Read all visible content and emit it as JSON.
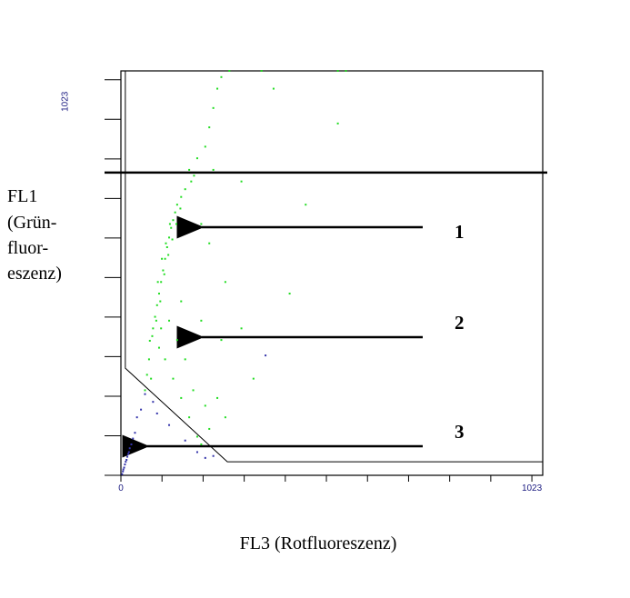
{
  "chart_data": {
    "type": "scatter",
    "x_label": "FL3 (Rotfluoreszenz)",
    "y_label": [
      "FL1",
      "(Grün-",
      "fluor-",
      "eszenz)"
    ],
    "annotations": [
      "1",
      "2",
      "3"
    ],
    "xlim": [
      0,
      1050
    ],
    "ylim": [
      0,
      1046
    ],
    "xticks": [
      0,
      1023
    ],
    "yticks": [
      1023
    ],
    "xtick_marks": [
      0,
      102.3,
      204.6,
      306.9,
      409.2,
      511.5,
      613.8,
      716.1,
      818.4,
      920.7,
      1023
    ],
    "ytick_marks": [
      0,
      102.3,
      204.6,
      306.9,
      409.2,
      511.5,
      613.8,
      716.1,
      818.4,
      920.7,
      1023
    ],
    "gate_line": 783,
    "gate": {
      "x": [
        11,
        11,
        265,
        1050
      ],
      "y": [
        1046,
        277,
        35,
        35
      ]
    },
    "series": [
      {
        "color": "#22dd22",
        "x": [
          72,
          80,
          85,
          90,
          95,
          100,
          105,
          110,
          115,
          120,
          125,
          130,
          135,
          140,
          150,
          160,
          175,
          182,
          78,
          88,
          98,
          108,
          118,
          128,
          138,
          148,
          92,
          102,
          112,
          122,
          70,
          65,
          60,
          75,
          95,
          110,
          130,
          150,
          170,
          190,
          200,
          140,
          160,
          180,
          210,
          220,
          240,
          260,
          200,
          250,
          300,
          330,
          260,
          220,
          200,
          230,
          210,
          220,
          230,
          240,
          250,
          270,
          350,
          540,
          560,
          380,
          540,
          460,
          420,
          190,
          170,
          300,
          150,
          120,
          100
        ],
        "values": [
          348,
          380,
          410,
          440,
          470,
          500,
          530,
          560,
          590,
          615,
          640,
          660,
          680,
          700,
          720,
          740,
          760,
          775,
          360,
          400,
          450,
          520,
          570,
          610,
          650,
          690,
          500,
          560,
          600,
          650,
          300,
          260,
          220,
          250,
          330,
          300,
          250,
          200,
          150,
          100,
          80,
          350,
          300,
          220,
          180,
          120,
          200,
          150,
          400,
          350,
          380,
          250,
          500,
          600,
          650,
          790,
          850,
          900,
          950,
          1000,
          1030,
          1046,
          1046,
          1046,
          1046,
          1000,
          910,
          700,
          470,
          820,
          790,
          760,
          450,
          400,
          380
        ]
      },
      {
        "color": "#3333aa",
        "x": [
          3,
          5,
          8,
          10,
          14,
          18,
          22,
          26,
          30,
          35,
          12,
          20,
          40,
          50,
          60,
          80,
          90,
          120,
          160,
          190,
          210,
          230,
          360,
          6,
          16
        ],
        "values": [
          3,
          10,
          20,
          28,
          40,
          55,
          70,
          80,
          95,
          110,
          35,
          60,
          150,
          170,
          210,
          190,
          160,
          130,
          90,
          60,
          45,
          50,
          310,
          15,
          48
        ]
      }
    ]
  }
}
